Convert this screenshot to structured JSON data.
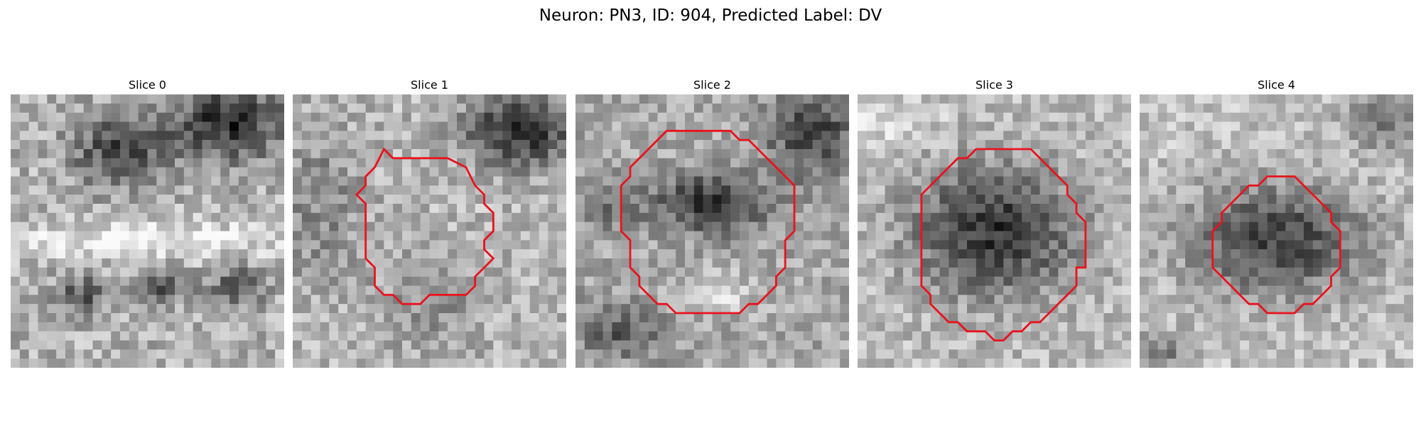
{
  "figure": {
    "title": "Neuron: PN3, ID: 904, Predicted Label: DV",
    "outline_color": "#e8141e"
  },
  "slices": [
    {
      "label": "Slice 0",
      "has_outline": false
    },
    {
      "label": "Slice 1",
      "has_outline": true
    },
    {
      "label": "Slice 2",
      "has_outline": true
    },
    {
      "label": "Slice 3",
      "has_outline": true
    },
    {
      "label": "Slice 4",
      "has_outline": true
    }
  ]
}
